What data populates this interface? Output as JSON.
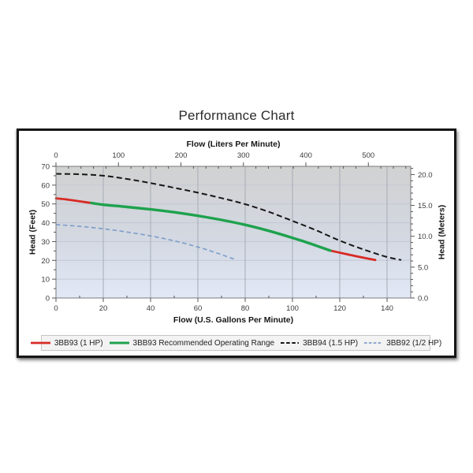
{
  "page": {
    "title": "Performance Chart"
  },
  "chart_data": {
    "type": "line",
    "title": "Performance Chart",
    "grid": "on",
    "legend_position": "bottom",
    "axes": {
      "bottom": {
        "label": "Flow (U.S. Gallons Per Minute)",
        "ticks": [
          0,
          20,
          40,
          60,
          80,
          100,
          120,
          140
        ],
        "range": [
          0,
          150
        ],
        "minor_step": 10
      },
      "top": {
        "label": "Flow (Liters Per Minute)",
        "ticks": [
          0,
          100,
          200,
          300,
          400,
          500
        ],
        "unit": "liters_per_minute",
        "minor_step": 20
      },
      "left": {
        "label": "Head (Feet)",
        "ticks": [
          0,
          10,
          20,
          30,
          40,
          50,
          60,
          70
        ],
        "range": [
          0,
          70
        ],
        "minor_step": 5
      },
      "right": {
        "label": "Head (Meters)",
        "ticks": [
          {
            "value": 0,
            "label": "0.0"
          },
          {
            "value": 5,
            "label": "5.0"
          },
          {
            "value": 10,
            "label": "10.0"
          },
          {
            "value": 15,
            "label": "15.0"
          },
          {
            "value": 20,
            "label": "20.0"
          }
        ],
        "unit": "meters",
        "minor_step": 1
      }
    },
    "series": [
      {
        "name": "3BB93 (1 HP)",
        "color": "#d92a25",
        "style": "solid",
        "width": 2.8,
        "dash": null,
        "segments": [
          [
            [
              0,
              53
            ],
            [
              5,
              52.3
            ],
            [
              10,
              51.4
            ],
            [
              15,
              50.5
            ]
          ],
          [
            [
              116,
              25.2
            ],
            [
              120,
              24.1
            ],
            [
              125,
              22.7
            ],
            [
              130,
              21.4
            ],
            [
              135,
              20.2
            ]
          ]
        ]
      },
      {
        "name": "3BB93 Recommended Operating Range",
        "color": "#1ea24d",
        "style": "solid",
        "width": 3.4,
        "dash": null,
        "segments": [
          [
            [
              15,
              50.5
            ],
            [
              20,
              49.6
            ],
            [
              30,
              48.4
            ],
            [
              40,
              47.1
            ],
            [
              50,
              45.6
            ],
            [
              60,
              43.7
            ],
            [
              70,
              41.5
            ],
            [
              80,
              38.9
            ],
            [
              90,
              35.7
            ],
            [
              100,
              32.0
            ],
            [
              108,
              28.7
            ],
            [
              116,
              25.2
            ]
          ]
        ]
      },
      {
        "name": "3BB94 (1.5 HP)",
        "color": "#161616",
        "style": "dashed",
        "width": 2,
        "dash": [
          7,
          4
        ],
        "segments": [
          [
            [
              0,
              66
            ],
            [
              10,
              65.8
            ],
            [
              20,
              65
            ],
            [
              30,
              63.3
            ],
            [
              40,
              61.1
            ],
            [
              50,
              58.6
            ],
            [
              60,
              56
            ],
            [
              70,
              53.1
            ],
            [
              80,
              49.9
            ],
            [
              90,
              45.8
            ],
            [
              100,
              41
            ],
            [
              110,
              36
            ],
            [
              120,
              30.5
            ],
            [
              130,
              25.8
            ],
            [
              140,
              21.8
            ],
            [
              146,
              20.2
            ]
          ]
        ]
      },
      {
        "name": "3BB92 (1/2 HP)",
        "color": "#7f9fca",
        "style": "dashed",
        "width": 1.7,
        "dash": [
          5.5,
          3.5
        ],
        "segments": [
          [
            [
              0,
              39
            ],
            [
              10,
              38.1
            ],
            [
              20,
              36.8
            ],
            [
              30,
              35.1
            ],
            [
              40,
              33
            ],
            [
              50,
              30.4
            ],
            [
              60,
              27.1
            ],
            [
              68,
              23.9
            ],
            [
              76,
              20.4
            ]
          ]
        ]
      }
    ],
    "colors": {
      "plot_bg_top": "#d1d1d1",
      "plot_bg_mid": "#d3d8e2",
      "plot_bg_bottom": "#e2e9f6",
      "vertical_grid": "#a7acb5",
      "horizontal_grid": "#c2c8d4",
      "frame": "#7a7a7a",
      "tick": "#555555"
    }
  }
}
